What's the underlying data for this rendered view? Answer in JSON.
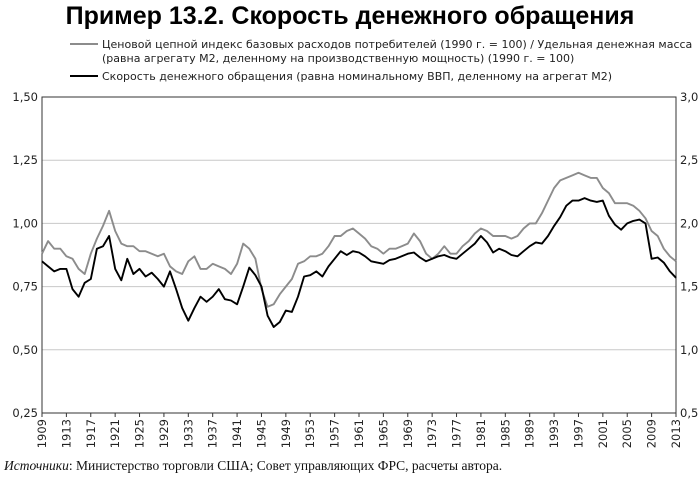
{
  "title": "Пример 13.2. Скорость денежного обращения",
  "source": {
    "label": "Источники",
    "text": ": Министерство торговли США; Совет управляющих ФРС, расчеты автора."
  },
  "chart_data": {
    "type": "line",
    "title": "Пример 13.2. Скорость денежного обращения",
    "grid": true,
    "legend_placement": "top-left",
    "x_ticks": [
      "1909",
      "1913",
      "1917",
      "1921",
      "1925",
      "1929",
      "1933",
      "1937",
      "1941",
      "1945",
      "1949",
      "1953",
      "1957",
      "1961",
      "1965",
      "1969",
      "1973",
      "1977",
      "1981",
      "1985",
      "1989",
      "1993",
      "1997",
      "2001",
      "2005",
      "2009",
      "2013"
    ],
    "y_left": {
      "ticks": [
        "0,25",
        "0,50",
        "0,75",
        "1,00",
        "1,25",
        "1,50"
      ],
      "lim": [
        0.25,
        1.5
      ]
    },
    "y_right": {
      "ticks": [
        "0,5",
        "1,0",
        "1,5",
        "2,0",
        "2,5",
        "3,0"
      ],
      "lim": [
        0.5,
        3.0
      ]
    },
    "x": [
      1909,
      1910,
      1911,
      1912,
      1913,
      1914,
      1915,
      1916,
      1917,
      1918,
      1919,
      1920,
      1921,
      1922,
      1923,
      1924,
      1925,
      1926,
      1927,
      1928,
      1929,
      1930,
      1931,
      1932,
      1933,
      1934,
      1935,
      1936,
      1937,
      1938,
      1939,
      1940,
      1941,
      1942,
      1943,
      1944,
      1945,
      1946,
      1947,
      1948,
      1949,
      1950,
      1951,
      1952,
      1953,
      1954,
      1955,
      1956,
      1957,
      1958,
      1959,
      1960,
      1961,
      1962,
      1963,
      1964,
      1965,
      1966,
      1967,
      1968,
      1969,
      1970,
      1971,
      1972,
      1973,
      1974,
      1975,
      1976,
      1977,
      1978,
      1979,
      1980,
      1981,
      1982,
      1983,
      1984,
      1985,
      1986,
      1987,
      1988,
      1989,
      1990,
      1991,
      1992,
      1993,
      1994,
      1995,
      1996,
      1997,
      1998,
      1999,
      2000,
      2001,
      2002,
      2003,
      2004,
      2005,
      2006,
      2007,
      2008,
      2009,
      2010,
      2011,
      2012,
      2013
    ],
    "series": [
      {
        "name": "Ценовой цепной индекс базовых расходов потребителей (1990 г. = 100) / Удельная денежная масса (равна агрегату M2, деленному на производственную мощность) (1990 г. = 100)",
        "axis": "left",
        "color": "#8c8c8c",
        "values": [
          0.88,
          0.93,
          0.9,
          0.9,
          0.87,
          0.86,
          0.82,
          0.8,
          0.88,
          0.94,
          0.99,
          1.05,
          0.97,
          0.92,
          0.91,
          0.91,
          0.89,
          0.89,
          0.88,
          0.87,
          0.88,
          0.83,
          0.81,
          0.8,
          0.85,
          0.87,
          0.82,
          0.82,
          0.84,
          0.83,
          0.82,
          0.8,
          0.84,
          0.92,
          0.9,
          0.86,
          0.74,
          0.67,
          0.68,
          0.72,
          0.75,
          0.78,
          0.84,
          0.85,
          0.87,
          0.87,
          0.88,
          0.91,
          0.95,
          0.95,
          0.97,
          0.98,
          0.96,
          0.94,
          0.91,
          0.9,
          0.88,
          0.9,
          0.9,
          0.91,
          0.92,
          0.96,
          0.93,
          0.88,
          0.86,
          0.88,
          0.91,
          0.88,
          0.88,
          0.91,
          0.93,
          0.96,
          0.98,
          0.97,
          0.95,
          0.95,
          0.95,
          0.94,
          0.95,
          0.98,
          1.0,
          1.0,
          1.04,
          1.09,
          1.14,
          1.17,
          1.18,
          1.19,
          1.2,
          1.19,
          1.18,
          1.18,
          1.14,
          1.12,
          1.08,
          1.08,
          1.08,
          1.07,
          1.05,
          1.02,
          0.97,
          0.95,
          0.9,
          0.87,
          0.85
        ]
      },
      {
        "name": "Скорость денежного обращения (равна номинальному ВВП, деленному на агрегат M2)",
        "axis": "right",
        "color": "#000000",
        "values": [
          1.7,
          1.66,
          1.62,
          1.64,
          1.64,
          1.48,
          1.42,
          1.53,
          1.56,
          1.8,
          1.82,
          1.9,
          1.64,
          1.55,
          1.72,
          1.6,
          1.64,
          1.58,
          1.61,
          1.56,
          1.5,
          1.62,
          1.48,
          1.33,
          1.23,
          1.33,
          1.42,
          1.38,
          1.42,
          1.48,
          1.4,
          1.39,
          1.36,
          1.5,
          1.65,
          1.59,
          1.5,
          1.27,
          1.18,
          1.22,
          1.31,
          1.3,
          1.42,
          1.58,
          1.59,
          1.62,
          1.58,
          1.66,
          1.72,
          1.78,
          1.75,
          1.78,
          1.77,
          1.74,
          1.7,
          1.69,
          1.68,
          1.71,
          1.72,
          1.74,
          1.76,
          1.77,
          1.73,
          1.7,
          1.72,
          1.74,
          1.75,
          1.73,
          1.72,
          1.76,
          1.8,
          1.84,
          1.9,
          1.85,
          1.77,
          1.8,
          1.78,
          1.75,
          1.74,
          1.78,
          1.82,
          1.85,
          1.84,
          1.9,
          1.98,
          2.05,
          2.14,
          2.18,
          2.18,
          2.2,
          2.18,
          2.17,
          2.18,
          2.06,
          1.99,
          1.95,
          2.0,
          2.02,
          2.03,
          2.0,
          1.72,
          1.73,
          1.69,
          1.62,
          1.57
        ]
      }
    ]
  }
}
